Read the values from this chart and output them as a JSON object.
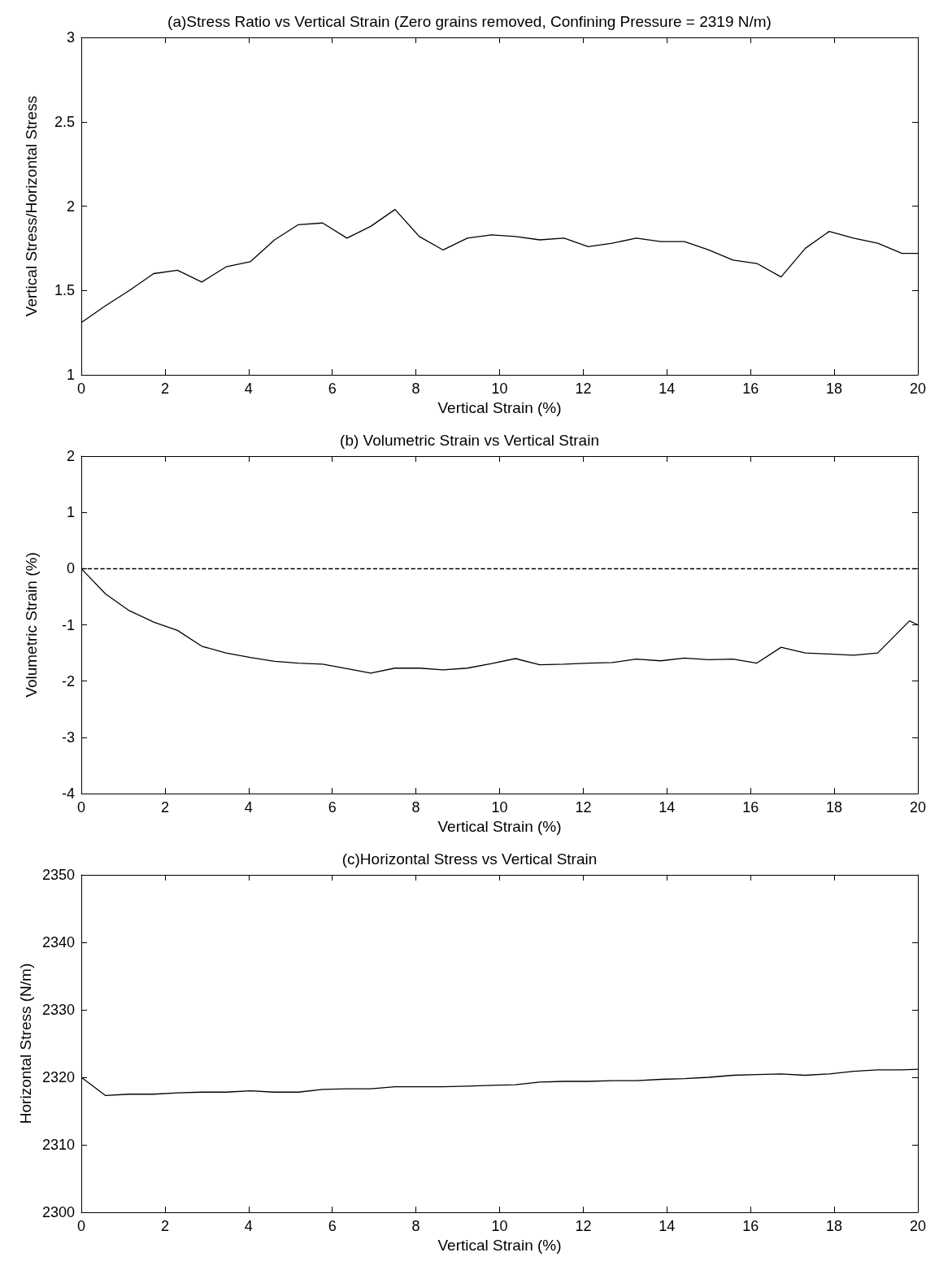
{
  "chart_data": [
    {
      "type": "line",
      "title": "(a)Stress Ratio vs Vertical Strain (Zero grains removed, Confining Pressure = 2319 N/m)",
      "xlabel": "Vertical Strain (%)",
      "ylabel": "Vertical Stress/Horizontal Stress",
      "x": [
        0,
        0.58,
        1.15,
        1.73,
        2.3,
        2.88,
        3.46,
        4.04,
        4.62,
        5.19,
        5.77,
        6.35,
        6.92,
        7.5,
        8.08,
        8.65,
        9.23,
        9.81,
        10.38,
        10.96,
        11.54,
        12.12,
        12.69,
        13.27,
        13.85,
        14.42,
        15,
        15.58,
        16.15,
        16.73,
        17.31,
        17.88,
        18.46,
        19.04,
        19.62,
        20
      ],
      "series": [
        {
          "color": "#000000",
          "values": [
            1.31,
            1.41,
            1.5,
            1.6,
            1.62,
            1.55,
            1.64,
            1.67,
            1.8,
            1.89,
            1.9,
            1.81,
            1.88,
            1.98,
            1.82,
            1.74,
            1.81,
            1.83,
            1.82,
            1.8,
            1.81,
            1.76,
            1.78,
            1.81,
            1.79,
            1.79,
            1.74,
            1.68,
            1.66,
            1.58,
            1.75,
            1.85,
            1.81,
            1.78,
            1.72,
            1.72
          ]
        }
      ],
      "xlim": [
        0,
        20
      ],
      "xticks": [
        0,
        2,
        4,
        6,
        8,
        10,
        12,
        14,
        16,
        18,
        20
      ],
      "ylim": [
        1,
        3
      ],
      "yticks": [
        1,
        1.5,
        2,
        2.5,
        3
      ],
      "marker": "none",
      "line_style": "solid"
    },
    {
      "type": "line",
      "title": "(b) Volumetric Strain vs Vertical Strain",
      "xlabel": "Vertical Strain (%)",
      "ylabel": "Volumetric Strain (%)",
      "x": [
        0,
        0.58,
        1.15,
        1.73,
        2.3,
        2.88,
        3.46,
        4.04,
        4.62,
        5.19,
        5.77,
        6.35,
        6.92,
        7.5,
        8.08,
        8.65,
        9.23,
        9.81,
        10.38,
        10.96,
        11.54,
        12.12,
        12.69,
        13.27,
        13.85,
        14.42,
        15,
        15.58,
        16.15,
        16.73,
        17.31,
        17.88,
        18.46,
        19.04,
        19.8,
        20
      ],
      "series": [
        {
          "color": "#000000",
          "values": [
            0,
            -0.45,
            -0.75,
            -0.95,
            -1.1,
            -1.38,
            -1.5,
            -1.58,
            -1.65,
            -1.68,
            -1.7,
            -1.78,
            -1.86,
            -1.77,
            -1.77,
            -1.8,
            -1.77,
            -1.69,
            -1.6,
            -1.71,
            -1.7,
            -1.68,
            -1.67,
            -1.61,
            -1.64,
            -1.59,
            -1.62,
            -1.61,
            -1.68,
            -1.4,
            -1.5,
            -1.52,
            -1.54,
            -1.5,
            -0.93,
            -1.0
          ]
        }
      ],
      "ref_lines": [
        {
          "axis": "y",
          "value": 0,
          "color": "#000000",
          "line_style": "dashed"
        }
      ],
      "xlim": [
        0,
        20
      ],
      "xticks": [
        0,
        2,
        4,
        6,
        8,
        10,
        12,
        14,
        16,
        18,
        20
      ],
      "ylim": [
        -4,
        2
      ],
      "yticks": [
        -4,
        -3,
        -2,
        -1,
        0,
        1,
        2
      ],
      "marker": "none",
      "line_style": "solid"
    },
    {
      "type": "line",
      "title": "(c)Horizontal Stress vs Vertical Strain",
      "xlabel": "Vertical Strain (%)",
      "ylabel": "Horizontal Stress (N/m)",
      "x": [
        0,
        0.58,
        1.15,
        1.73,
        2.3,
        2.88,
        3.46,
        4.04,
        4.62,
        5.19,
        5.77,
        6.35,
        6.92,
        7.5,
        8.08,
        8.65,
        9.23,
        9.81,
        10.38,
        10.96,
        11.54,
        12.12,
        12.69,
        13.27,
        13.85,
        14.42,
        15,
        15.58,
        16.15,
        16.73,
        17.31,
        17.88,
        18.46,
        19.04,
        19.62,
        20
      ],
      "series": [
        {
          "color": "#000000",
          "values": [
            2320,
            2317.3,
            2317.5,
            2317.5,
            2317.7,
            2317.8,
            2317.8,
            2318.0,
            2317.8,
            2317.8,
            2318.2,
            2318.3,
            2318.3,
            2318.6,
            2318.6,
            2318.6,
            2318.7,
            2318.8,
            2318.9,
            2319.3,
            2319.4,
            2319.4,
            2319.5,
            2319.5,
            2319.7,
            2319.8,
            2320.0,
            2320.3,
            2320.4,
            2320.5,
            2320.3,
            2320.5,
            2320.9,
            2321.1,
            2321.1,
            2321.2
          ]
        }
      ],
      "xlim": [
        0,
        20
      ],
      "xticks": [
        0,
        2,
        4,
        6,
        8,
        10,
        12,
        14,
        16,
        18,
        20
      ],
      "ylim": [
        2300,
        2350
      ],
      "yticks": [
        2300,
        2310,
        2320,
        2330,
        2340,
        2350
      ],
      "marker": "none",
      "line_style": "solid"
    }
  ]
}
